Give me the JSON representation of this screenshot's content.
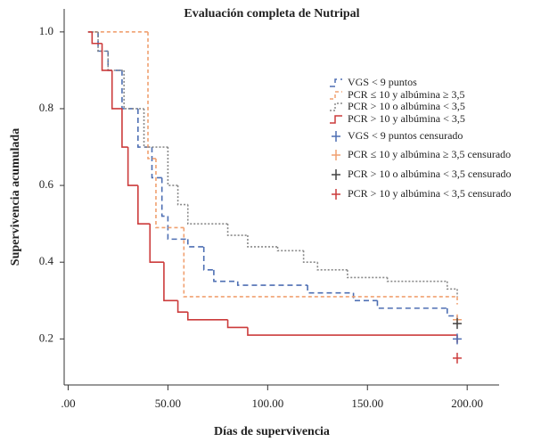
{
  "chart_data": {
    "type": "step",
    "title": "Evaluación completa de Nutripal",
    "xlabel": "Días de supervivencia",
    "ylabel": "Supervivencia acumulada",
    "xlim": [
      -2,
      216
    ],
    "ylim": [
      0.08,
      1.06
    ],
    "xticks": [
      {
        "value": 0,
        "label": ".00"
      },
      {
        "value": 50,
        "label": "50.00"
      },
      {
        "value": 100,
        "label": "100.00"
      },
      {
        "value": 150,
        "label": "150.00"
      },
      {
        "value": 200,
        "label": "200.00"
      }
    ],
    "yticks": [
      {
        "value": 1,
        "label": "1.0"
      },
      0.8,
      0.6,
      0.4,
      0.2
    ],
    "series": [
      {
        "name": "VGS < 9 puntos",
        "color": "#4e6fb3",
        "dash": "6,4",
        "x": [
          10,
          15,
          20,
          27,
          35,
          42,
          47,
          50,
          60,
          68,
          73,
          85,
          120,
          143,
          155,
          190,
          195
        ],
        "values": [
          1.0,
          0.95,
          0.9,
          0.8,
          0.7,
          0.62,
          0.52,
          0.46,
          0.44,
          0.38,
          0.35,
          0.34,
          0.32,
          0.3,
          0.28,
          0.26,
          0.25
        ]
      },
      {
        "name": "PCR ≤ 10 y albúmina ≥ 3,5",
        "color": "#f0a070",
        "dash": "4,3",
        "x": [
          10,
          40,
          44,
          58,
          195
        ],
        "values": [
          1.0,
          0.67,
          0.49,
          0.31,
          0.29
        ]
      },
      {
        "name": "PCR > 10 o albúmina < 3,5",
        "color": "#8a8a8a",
        "dash": "2,2",
        "x": [
          10,
          15,
          20,
          28,
          38,
          50,
          55,
          60,
          80,
          90,
          105,
          118,
          125,
          140,
          160,
          190,
          195
        ],
        "values": [
          1.0,
          0.95,
          0.9,
          0.8,
          0.7,
          0.6,
          0.55,
          0.5,
          0.47,
          0.44,
          0.43,
          0.4,
          0.38,
          0.36,
          0.35,
          0.33,
          0.31
        ]
      },
      {
        "name": "PCR > 10 y albúmina < 3,5",
        "color": "#cc3b3b",
        "dash": "",
        "x": [
          10,
          12,
          17,
          22,
          27,
          30,
          35,
          41,
          48,
          55,
          60,
          80,
          90,
          193,
          195
        ],
        "values": [
          1.0,
          0.97,
          0.9,
          0.8,
          0.7,
          0.6,
          0.5,
          0.4,
          0.3,
          0.27,
          0.25,
          0.23,
          0.21,
          0.21,
          0.19
        ]
      },
      {
        "name": "VGS < 9 puntos censurado",
        "color": "#4e6fb3",
        "marker": "plus",
        "x": [
          195
        ],
        "values": [
          0.2
        ]
      },
      {
        "name": "PCR ≤ 10 y albúmina ≥ 3,5 censurado",
        "color": "#f0a070",
        "marker": "plus",
        "x": [
          195
        ],
        "values": [
          0.25
        ]
      },
      {
        "name": "PCR > 10 o albúmina < 3,5 censurado",
        "color": "#444444",
        "marker": "plus",
        "x": [
          195
        ],
        "values": [
          0.24
        ]
      },
      {
        "name": "PCR > 10 y albúmina < 3,5 censurado",
        "color": "#cc3b3b",
        "marker": "plus",
        "x": [
          195
        ],
        "values": [
          0.15
        ]
      }
    ]
  }
}
